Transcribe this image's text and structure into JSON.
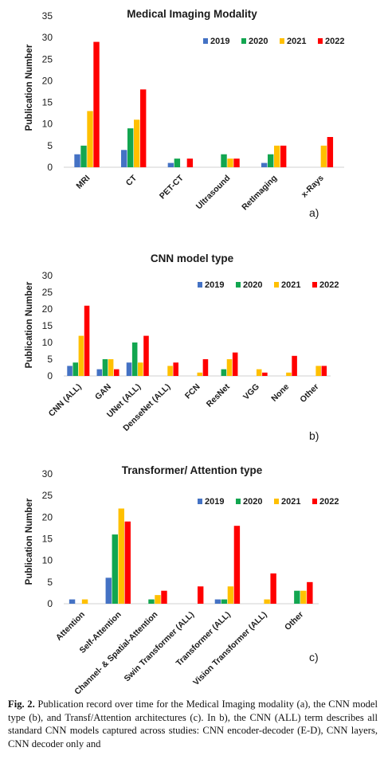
{
  "legend_years": [
    "2019",
    "2020",
    "2021",
    "2022"
  ],
  "colors": {
    "2019": "#4472c4",
    "2020": "#12a650",
    "2021": "#ffc000",
    "2022": "#ff0000"
  },
  "chart_data": [
    {
      "type": "bar",
      "title": "Medical Imaging Modality",
      "ylabel": "Publication Number",
      "panel_label": "a)",
      "ylim": [
        0,
        35
      ],
      "yticks": [
        0,
        5,
        10,
        15,
        20,
        25,
        30,
        35
      ],
      "categories": [
        "MRI",
        "CT",
        "PET-CT",
        "Ultrasound",
        "RetImaging",
        "x-Rays"
      ],
      "legend": "top-right",
      "series": [
        {
          "name": "2019",
          "values": [
            3,
            4,
            1,
            0,
            1,
            0
          ]
        },
        {
          "name": "2020",
          "values": [
            5,
            9,
            2,
            3,
            3,
            0
          ]
        },
        {
          "name": "2021",
          "values": [
            13,
            11,
            0,
            2,
            5,
            5
          ]
        },
        {
          "name": "2022",
          "values": [
            29,
            18,
            2,
            2,
            5,
            7
          ]
        }
      ]
    },
    {
      "type": "bar",
      "title": "CNN model type",
      "ylabel": "Publication Number",
      "panel_label": "b)",
      "ylim": [
        0,
        30
      ],
      "yticks": [
        0,
        5,
        10,
        15,
        20,
        25,
        30
      ],
      "categories": [
        "CNN (ALL)",
        "GAN",
        "UNet (ALL)",
        "DenseNet (ALL)",
        "FCN",
        "ResNet",
        "VGG",
        "None",
        "Other"
      ],
      "legend": "top-right",
      "series": [
        {
          "name": "2019",
          "values": [
            3,
            2,
            4,
            0,
            0,
            0,
            0,
            0,
            0
          ]
        },
        {
          "name": "2020",
          "values": [
            4,
            5,
            10,
            0,
            0,
            2,
            0,
            0,
            0
          ]
        },
        {
          "name": "2021",
          "values": [
            12,
            5,
            4,
            3,
            1,
            5,
            2,
            1,
            3
          ]
        },
        {
          "name": "2022",
          "values": [
            21,
            2,
            12,
            4,
            5,
            7,
            1,
            6,
            3
          ]
        }
      ]
    },
    {
      "type": "bar",
      "title": "Transformer/ Attention type",
      "ylabel": "Publication Number",
      "panel_label": "c)",
      "ylim": [
        0,
        30
      ],
      "yticks": [
        0,
        5,
        10,
        15,
        20,
        25,
        30
      ],
      "categories": [
        "Attention",
        "Self-Attention",
        "Channel- & Spatial-Attention",
        "Swin Transformer (ALL)",
        "Transformer (ALL)",
        "Vision Transformer (ALL)",
        "Other"
      ],
      "legend": "top-right",
      "series": [
        {
          "name": "2019",
          "values": [
            1,
            6,
            0,
            0,
            1,
            0,
            0
          ]
        },
        {
          "name": "2020",
          "values": [
            0,
            16,
            1,
            0,
            1,
            0,
            3
          ]
        },
        {
          "name": "2021",
          "values": [
            1,
            22,
            2,
            0,
            4,
            1,
            3
          ]
        },
        {
          "name": "2022",
          "values": [
            0,
            19,
            3,
            4,
            18,
            7,
            5
          ]
        }
      ]
    }
  ],
  "caption": {
    "label": "Fig. 2.",
    "text": " Publication record over time for the Medical Imaging modality (a), the CNN model type (b), and Transf/Attention architectures (c). In b), the CNN (ALL) term describes all standard CNN models captured across studies: CNN encoder-decoder (E-D), CNN layers, CNN decoder only and"
  }
}
